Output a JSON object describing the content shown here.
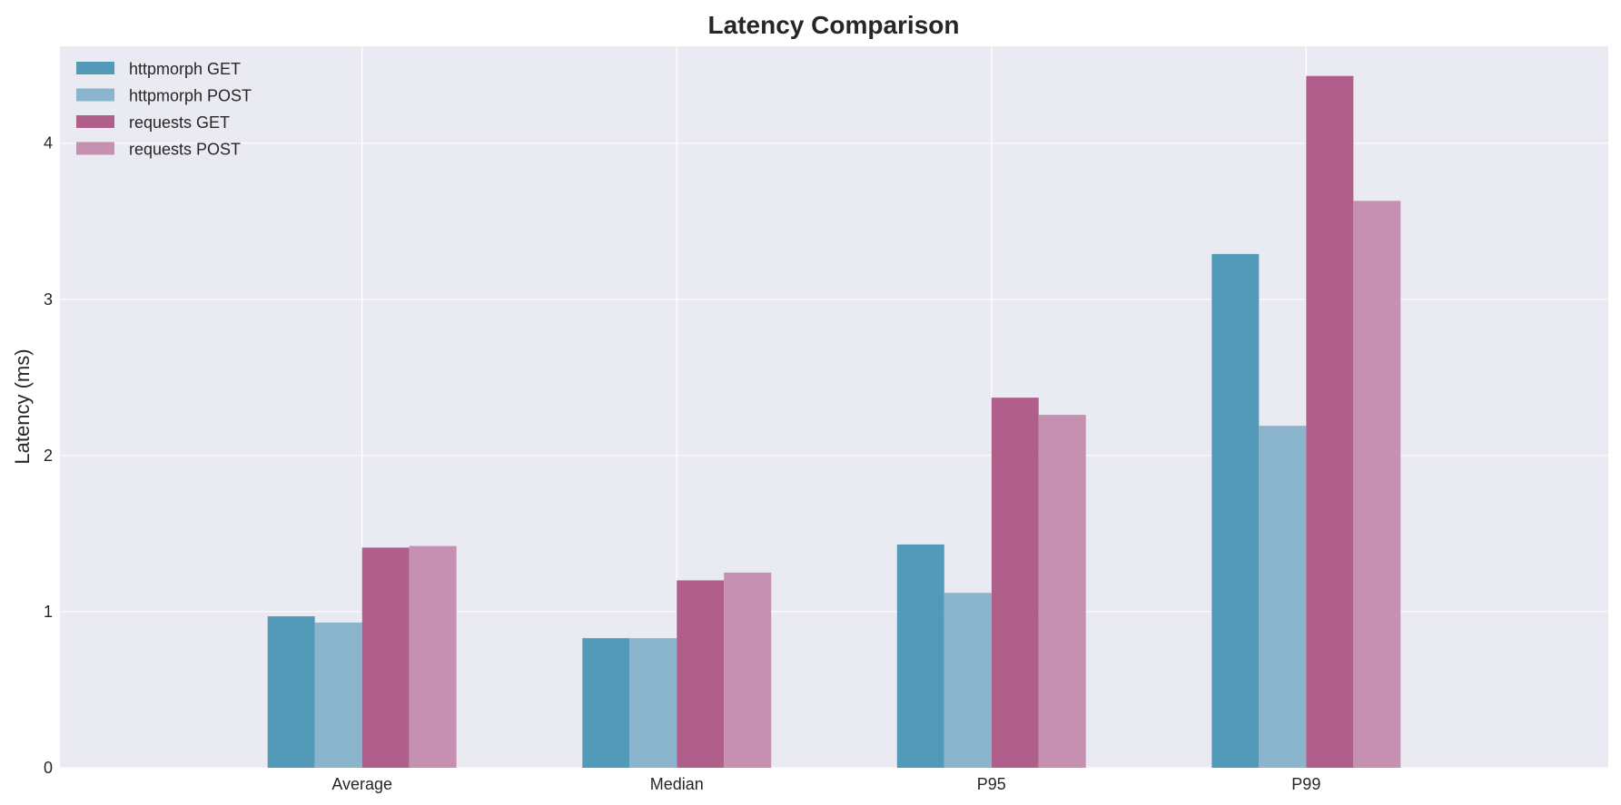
{
  "chart_data": {
    "type": "bar",
    "title": "Latency Comparison",
    "xlabel": "",
    "ylabel": "Latency (ms)",
    "categories": [
      "Average",
      "Median",
      "P95",
      "P99"
    ],
    "ylim": [
      0,
      4.62
    ],
    "yticks": [
      0,
      1,
      2,
      3,
      4
    ],
    "grid": true,
    "legend_position": "top-left",
    "series": [
      {
        "name": "httpmorph GET",
        "color": "#5399b8",
        "values": [
          0.97,
          0.83,
          1.43,
          3.29
        ]
      },
      {
        "name": "httpmorph POST",
        "color": "#8ab5cd",
        "values": [
          0.93,
          0.83,
          1.12,
          2.19
        ]
      },
      {
        "name": "requests GET",
        "color": "#b05f8a",
        "values": [
          1.41,
          1.2,
          2.37,
          4.43
        ]
      },
      {
        "name": "requests POST",
        "color": "#c690b0",
        "values": [
          1.42,
          1.25,
          2.26,
          3.63
        ]
      }
    ],
    "colors": {
      "plot_background": "#eaeaf2",
      "grid": "#ffffff"
    }
  }
}
